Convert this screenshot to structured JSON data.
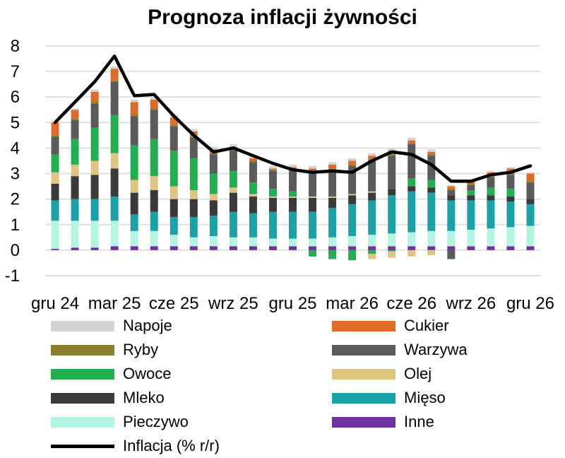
{
  "chart_data": {
    "type": "bar",
    "title": "Prognoza inflacji żywności",
    "stacked": true,
    "grid": "horizontal",
    "legend_position": "bottom",
    "ylim": [
      -1,
      8
    ],
    "yticks": [
      -1,
      0,
      1,
      2,
      3,
      4,
      5,
      6,
      7,
      8
    ],
    "xtick_labels": [
      "gru 24",
      "mar 25",
      "cze 25",
      "wrz 25",
      "gru 25",
      "mar 26",
      "cze 26",
      "wrz 26",
      "gru 26"
    ],
    "categories": [
      "12.2024",
      "01.2025",
      "02.2025",
      "03.2025",
      "04.2025",
      "05.2025",
      "06.2025",
      "07.2025",
      "08.2025",
      "09.2025",
      "10.2025",
      "11.2025",
      "12.2025",
      "01.2026",
      "02.2026",
      "03.2026",
      "04.2026",
      "05.2026",
      "06.2026",
      "07.2026",
      "08.2026",
      "09.2026",
      "10.2026",
      "11.2026",
      "12.2026"
    ],
    "series": [
      {
        "name": "Inne",
        "color": "#7030a0",
        "values": [
          0.05,
          0.1,
          0.1,
          0.15,
          0.15,
          0.15,
          0.15,
          0.15,
          0.15,
          0.15,
          0.15,
          0.15,
          0.15,
          0.15,
          0.15,
          0.15,
          0.15,
          0.15,
          0.15,
          0.15,
          0.15,
          0.15,
          0.15,
          0.15,
          0.15
        ]
      },
      {
        "name": "Pieczywo",
        "color": "#b3f5e3",
        "values": [
          1.1,
          1.05,
          1.05,
          1.0,
          0.6,
          0.6,
          0.45,
          0.35,
          0.4,
          0.35,
          0.35,
          0.3,
          0.3,
          0.3,
          0.35,
          0.4,
          0.45,
          0.5,
          0.55,
          0.6,
          0.6,
          0.65,
          0.7,
          0.75,
          0.8
        ]
      },
      {
        "name": "Mięso",
        "color": "#17a3a8",
        "values": [
          0.8,
          0.85,
          0.85,
          0.95,
          0.65,
          0.75,
          0.7,
          0.8,
          0.8,
          1.0,
          0.95,
          1.05,
          1.05,
          1.05,
          1.15,
          1.25,
          1.35,
          1.5,
          1.6,
          1.5,
          1.2,
          1.15,
          1.1,
          1.0,
          0.85
        ]
      },
      {
        "name": "Mleko",
        "color": "#3a3a3a",
        "values": [
          0.65,
          0.9,
          0.95,
          1.1,
          0.85,
          0.85,
          0.7,
          0.7,
          0.6,
          0.75,
          0.65,
          0.55,
          0.55,
          0.55,
          0.4,
          0.35,
          0.3,
          0.25,
          0.2,
          0.2,
          0.2,
          0.2,
          0.2,
          0.2,
          0.2
        ]
      },
      {
        "name": "Olej",
        "color": "#e0c580",
        "values": [
          0.45,
          0.45,
          0.55,
          0.6,
          0.5,
          0.55,
          0.5,
          0.35,
          0.25,
          0.2,
          0.1,
          0.05,
          0.05,
          0.05,
          0.05,
          0.05,
          0.05,
          0.0,
          0.0,
          0.0,
          0.0,
          0.0,
          0.0,
          0.0,
          0.0
        ]
      },
      {
        "name": "Owoce",
        "color": "#20b050",
        "values": [
          0.7,
          1.0,
          1.3,
          1.5,
          1.35,
          1.45,
          1.4,
          1.25,
          0.8,
          0.65,
          0.45,
          0.3,
          0.2,
          0.0,
          0.0,
          0.0,
          0.0,
          0.0,
          0.3,
          0.3,
          0.0,
          0.2,
          0.3,
          0.3,
          0.0
        ]
      },
      {
        "name": "Warzywa",
        "color": "#5b5b5b",
        "values": [
          0.7,
          0.75,
          0.95,
          1.3,
          1.15,
          1.15,
          0.95,
          0.8,
          0.75,
          0.8,
          0.8,
          0.7,
          0.8,
          0.95,
          1.05,
          1.1,
          1.2,
          1.3,
          1.35,
          0.95,
          0.2,
          0.2,
          0.4,
          0.55,
          0.65
        ]
      },
      {
        "name": "Ryby",
        "color": "#8b7d2a",
        "values": [
          0.05,
          0.05,
          0.05,
          0.05,
          0.05,
          0.05,
          0.05,
          0.05,
          0.05,
          0.05,
          0.05,
          0.05,
          0.05,
          0.05,
          0.05,
          0.05,
          0.05,
          0.05,
          0.05,
          0.05,
          0.05,
          0.05,
          0.05,
          0.05,
          0.05
        ]
      },
      {
        "name": "Cukier",
        "color": "#e06b26",
        "values": [
          0.5,
          0.35,
          0.4,
          0.45,
          0.5,
          0.35,
          0.3,
          0.2,
          0.15,
          0.1,
          0.1,
          0.05,
          0.1,
          0.1,
          0.15,
          0.15,
          0.15,
          0.15,
          0.1,
          0.1,
          0.1,
          0.1,
          0.15,
          0.2,
          0.3
        ]
      },
      {
        "name": "Napoje",
        "color": "#d4d4d4",
        "values": [
          0.05,
          0.05,
          0.1,
          0.1,
          0.1,
          0.1,
          0.1,
          0.1,
          0.1,
          0.1,
          0.1,
          0.1,
          0.1,
          0.1,
          0.1,
          0.1,
          0.1,
          0.1,
          0.1,
          0.1,
          0.05,
          0.05,
          0.05,
          0.05,
          0.05
        ]
      }
    ],
    "negative_series": [
      {
        "name": "Owoce",
        "color": "#20b050",
        "values": [
          0,
          0,
          0,
          0,
          0,
          0,
          0,
          0,
          0,
          0,
          0,
          0,
          0,
          -0.25,
          -0.35,
          -0.4,
          -0.15,
          -0.05,
          0,
          0,
          0,
          0,
          0,
          0,
          0
        ]
      },
      {
        "name": "Olej",
        "color": "#e0c580",
        "values": [
          0,
          0,
          0,
          0,
          0,
          0,
          0,
          0,
          0,
          0,
          0,
          0,
          0,
          0,
          0,
          0,
          -0.2,
          -0.25,
          -0.25,
          -0.2,
          0,
          0,
          0,
          0,
          0
        ]
      },
      {
        "name": "Warzywa",
        "color": "#5b5b5b",
        "values": [
          0,
          0,
          0,
          0,
          0,
          0,
          0,
          0,
          0,
          0,
          0,
          0,
          0,
          0,
          0,
          0,
          0,
          0,
          0,
          0,
          -0.35,
          0,
          0,
          0,
          0
        ]
      }
    ],
    "line": {
      "name": "Inflacja (% r/r)",
      "color": "#000000",
      "values": [
        5.0,
        5.8,
        6.6,
        7.6,
        6.05,
        6.1,
        5.25,
        4.5,
        3.85,
        4.0,
        3.7,
        3.4,
        3.15,
        3.05,
        3.1,
        3.05,
        3.5,
        3.85,
        3.75,
        3.35,
        2.7,
        2.7,
        2.95,
        3.05,
        3.3
      ]
    }
  },
  "legend": [
    {
      "label": "Napoje",
      "color": "#d4d4d4",
      "kind": "bar"
    },
    {
      "label": "Cukier",
      "color": "#e06b26",
      "kind": "bar"
    },
    {
      "label": "Ryby",
      "color": "#8b7d2a",
      "kind": "bar"
    },
    {
      "label": "Warzywa",
      "color": "#5b5b5b",
      "kind": "bar"
    },
    {
      "label": "Owoce",
      "color": "#20b050",
      "kind": "bar"
    },
    {
      "label": "Olej",
      "color": "#e0c580",
      "kind": "bar"
    },
    {
      "label": "Mleko",
      "color": "#3a3a3a",
      "kind": "bar"
    },
    {
      "label": "Mięso",
      "color": "#17a3a8",
      "kind": "bar"
    },
    {
      "label": "Pieczywo",
      "color": "#b3f5e3",
      "kind": "bar"
    },
    {
      "label": "Inne",
      "color": "#7030a0",
      "kind": "bar"
    },
    {
      "label": "Inflacja (% r/r)",
      "color": "#000000",
      "kind": "line"
    }
  ]
}
